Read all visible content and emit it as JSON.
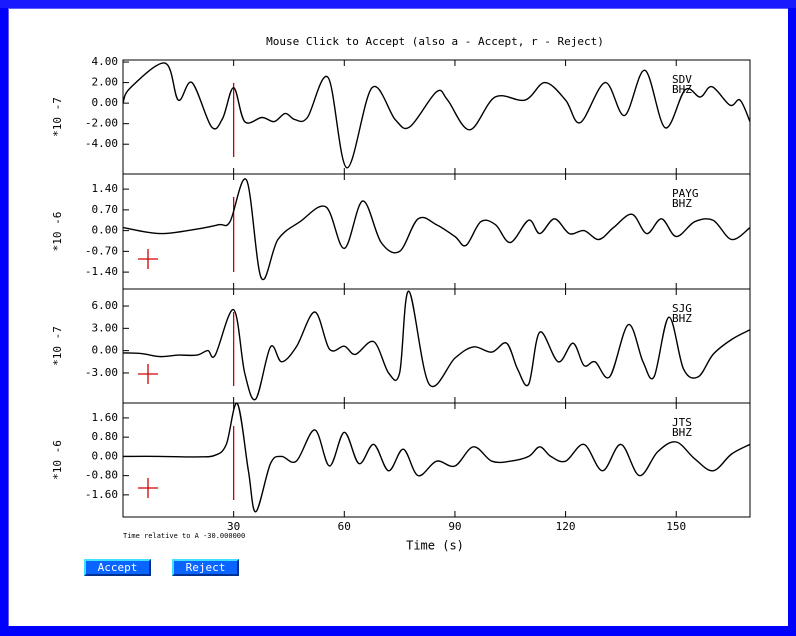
{
  "title": "Mouse Click to Accept (also a - Accept, r - Reject)",
  "xlabel": "Time (s)",
  "note": "Time relative to A -30.000000",
  "pick": {
    "time": 30
  },
  "buttons": [
    "Accept",
    "Reject"
  ],
  "chart_data": [
    {
      "type": "line",
      "station": "SDV",
      "channel": "BHZ",
      "ylabel": "*10 -7",
      "color": "#000000",
      "xlim": [
        0,
        170
      ],
      "xticks": [
        30,
        60,
        90,
        120,
        150
      ],
      "ylim": [
        -6.9,
        4.2
      ],
      "yticks": [
        {
          "value": 4,
          "label": "4.00"
        },
        {
          "value": 2,
          "label": "2.00"
        },
        {
          "value": 0,
          "label": "0.00"
        },
        {
          "value": -2,
          "label": "-2.00"
        },
        {
          "value": -4,
          "label": "-4.00"
        }
      ],
      "x": [
        0,
        1.9,
        11.4,
        15,
        18.7,
        24,
        27,
        30,
        33,
        37.7,
        41,
        44,
        46.6,
        50,
        55.6,
        60.7,
        67.5,
        73.8,
        77.8,
        85,
        88,
        94,
        100.9,
        109,
        114.4,
        120,
        124,
        130.7,
        136,
        141.5,
        147,
        152.4,
        156.5,
        159.7,
        164.6,
        167.3,
        170
      ],
      "values": [
        0,
        1.45,
        3.9,
        0.3,
        2.0,
        -2.3,
        -1.5,
        1.5,
        -1.8,
        -1.4,
        -1.8,
        -1.0,
        -1.6,
        -1.4,
        2.5,
        -6.3,
        1.5,
        -1.6,
        -2.3,
        1.1,
        0.3,
        -2.6,
        0.6,
        0.3,
        2.0,
        0.3,
        -1.9,
        2.0,
        -1.2,
        3.2,
        -2.4,
        1.3,
        0.6,
        1.6,
        -0.2,
        0.3,
        -1.8
      ]
    },
    {
      "type": "line",
      "station": "PAYG",
      "channel": "BHZ",
      "ylabel": "*10 -6",
      "color": "#000000",
      "xlim": [
        0,
        170
      ],
      "xticks": [
        30,
        60,
        90,
        120,
        150
      ],
      "ylim": [
        -1.97,
        1.91
      ],
      "yticks": [
        {
          "value": 1.4,
          "label": "1.40"
        },
        {
          "value": 0.7,
          "label": "0.70"
        },
        {
          "value": 0,
          "label": "0.00"
        },
        {
          "value": -0.7,
          "label": "-0.70"
        },
        {
          "value": -1.4,
          "label": "-1.40"
        }
      ],
      "x": [
        0,
        10,
        20,
        26,
        29,
        33.5,
        37.5,
        42,
        48,
        55,
        60,
        65,
        70,
        75,
        80,
        85,
        90,
        93,
        97,
        101,
        105,
        110,
        113,
        117,
        121,
        125,
        129,
        133,
        138,
        142,
        146,
        150,
        155,
        160,
        165,
        170
      ],
      "values": [
        0.1,
        -0.1,
        0.05,
        0.2,
        0.3,
        1.7,
        -1.6,
        -0.3,
        0.3,
        0.8,
        -0.6,
        1.0,
        -0.4,
        -0.7,
        0.4,
        0.2,
        -0.2,
        -0.5,
        0.3,
        0.2,
        -0.4,
        0.35,
        -0.1,
        0.4,
        -0.1,
        0,
        -0.3,
        0.1,
        0.55,
        -0.1,
        0.4,
        -0.2,
        0.3,
        0.35,
        -0.3,
        0.1
      ]
    },
    {
      "type": "line",
      "station": "SJG",
      "channel": "BHZ",
      "ylabel": "*10 -7",
      "color": "#000000",
      "xlim": [
        0,
        170
      ],
      "xticks": [
        30,
        60,
        90,
        120,
        150
      ],
      "ylim": [
        -7.04,
        8.29
      ],
      "yticks": [
        {
          "value": 6,
          "label": "6.00"
        },
        {
          "value": 3,
          "label": "3.00"
        },
        {
          "value": 0,
          "label": "0.00"
        },
        {
          "value": -3,
          "label": "-3.00"
        }
      ],
      "x": [
        0,
        5,
        10,
        15,
        20,
        23,
        25,
        30,
        33,
        36,
        40,
        43,
        47,
        52,
        56,
        60,
        63,
        68,
        72,
        75,
        77.5,
        83,
        90,
        95,
        100,
        104,
        107,
        110,
        113,
        118,
        122,
        125,
        128,
        132,
        137,
        141,
        144,
        148,
        152,
        156,
        160,
        165,
        170
      ],
      "values": [
        -0.3,
        -0.4,
        -0.8,
        -0.6,
        -0.6,
        0,
        -0.6,
        5.5,
        -3.0,
        -6.5,
        0.5,
        -1.5,
        0.5,
        5.2,
        0.2,
        0.6,
        -0.5,
        1.2,
        -3.0,
        -3.0,
        8.0,
        -4.5,
        -1.0,
        0.5,
        -0.2,
        1.0,
        -2.5,
        -4.5,
        2.5,
        -1.5,
        1.0,
        -2.0,
        -1.5,
        -3.5,
        3.5,
        -1.5,
        -3.5,
        4.5,
        -2.5,
        -3.5,
        -0.5,
        1.5,
        2.8
      ]
    },
    {
      "type": "line",
      "station": "JTS",
      "channel": "BHZ",
      "ylabel": "*10 -6",
      "color": "#000000",
      "xlim": [
        0,
        170
      ],
      "xticks": [
        30,
        60,
        90,
        120,
        150
      ],
      "ylim": [
        -2.52,
        2.22
      ],
      "yticks": [
        {
          "value": 1.6,
          "label": "1.60"
        },
        {
          "value": 0.8,
          "label": "0.80"
        },
        {
          "value": 0,
          "label": "0.00"
        },
        {
          "value": -0.8,
          "label": "-0.80"
        },
        {
          "value": -1.6,
          "label": "-1.60"
        }
      ],
      "x": [
        0,
        10,
        20,
        25,
        28,
        31,
        34,
        36,
        40,
        43,
        47,
        52,
        56,
        60,
        64,
        68,
        72,
        76,
        80,
        85,
        90,
        95,
        100,
        105,
        110,
        113,
        116,
        120,
        125,
        130,
        135,
        140,
        145,
        150,
        155,
        160,
        165,
        170
      ],
      "values": [
        0,
        0,
        -0.02,
        0.05,
        0.5,
        2.2,
        -0.6,
        -2.3,
        -0.3,
        0,
        -0.2,
        1.1,
        -0.4,
        1.0,
        -0.3,
        0.5,
        -0.6,
        0.3,
        -0.8,
        -0.2,
        -0.4,
        0.4,
        -0.2,
        -0.2,
        0,
        0.4,
        0,
        -0.2,
        0.5,
        -0.6,
        0.5,
        -0.8,
        0.2,
        0.6,
        -0.1,
        -0.6,
        0.1,
        0.5
      ]
    }
  ]
}
